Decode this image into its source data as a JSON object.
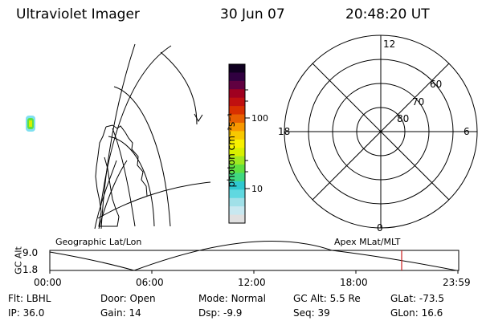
{
  "header": {
    "instrument": "Ultraviolet Imager",
    "date": "30 Jun 07",
    "time": "20:48:20 UT"
  },
  "colorbar": {
    "unit_label": "photon cm⁻²s⁻¹",
    "tick_100": "100",
    "tick_10": "10",
    "colors": [
      "#e0e0e0",
      "#c8e8f0",
      "#a0e0e8",
      "#60d8e0",
      "#30c8d0",
      "#40d880",
      "#60e040",
      "#a0e820",
      "#d8f000",
      "#f8f000",
      "#f8c800",
      "#f89800",
      "#e86000",
      "#d83000",
      "#c01010",
      "#a00020",
      "#600040",
      "#300040",
      "#100020"
    ]
  },
  "polar": {
    "mlt_12": "12",
    "mlt_18": "18",
    "mlt_6": "6",
    "mlt_0": "0",
    "lat_60": "60",
    "lat_70": "70",
    "lat_80": "80"
  },
  "map_labels": {
    "geographic": "Geographic Lat/Lon",
    "apex": "Apex MLat/MLT"
  },
  "altitude_plot": {
    "y_label": "GC Alt",
    "y_max": "9.0",
    "y_min": "1.8",
    "x_ticks": [
      "00:00",
      "06:00",
      "12:00",
      "18:00",
      "23:59"
    ],
    "current_time_marker_color": "#cc2020"
  },
  "status": {
    "flt_label": "Flt:",
    "flt_value": "LBHL",
    "ip_label": "IP:",
    "ip_value": "36.0",
    "door_label": "Door:",
    "door_value": "Open",
    "gain_label": "Gain:",
    "gain_value": "14",
    "mode_label": "Mode:",
    "mode_value": "Normal",
    "dsp_label": "Dsp:",
    "dsp_value": "-9.9",
    "gcalt_label": "GC Alt:",
    "gcalt_value": "5.5 Re",
    "seq_label": "Seq:",
    "seq_value": "39",
    "glat_label": "GLat:",
    "glat_value": "-73.5",
    "glon_label": "GLon:",
    "glon_value": "16.6"
  }
}
